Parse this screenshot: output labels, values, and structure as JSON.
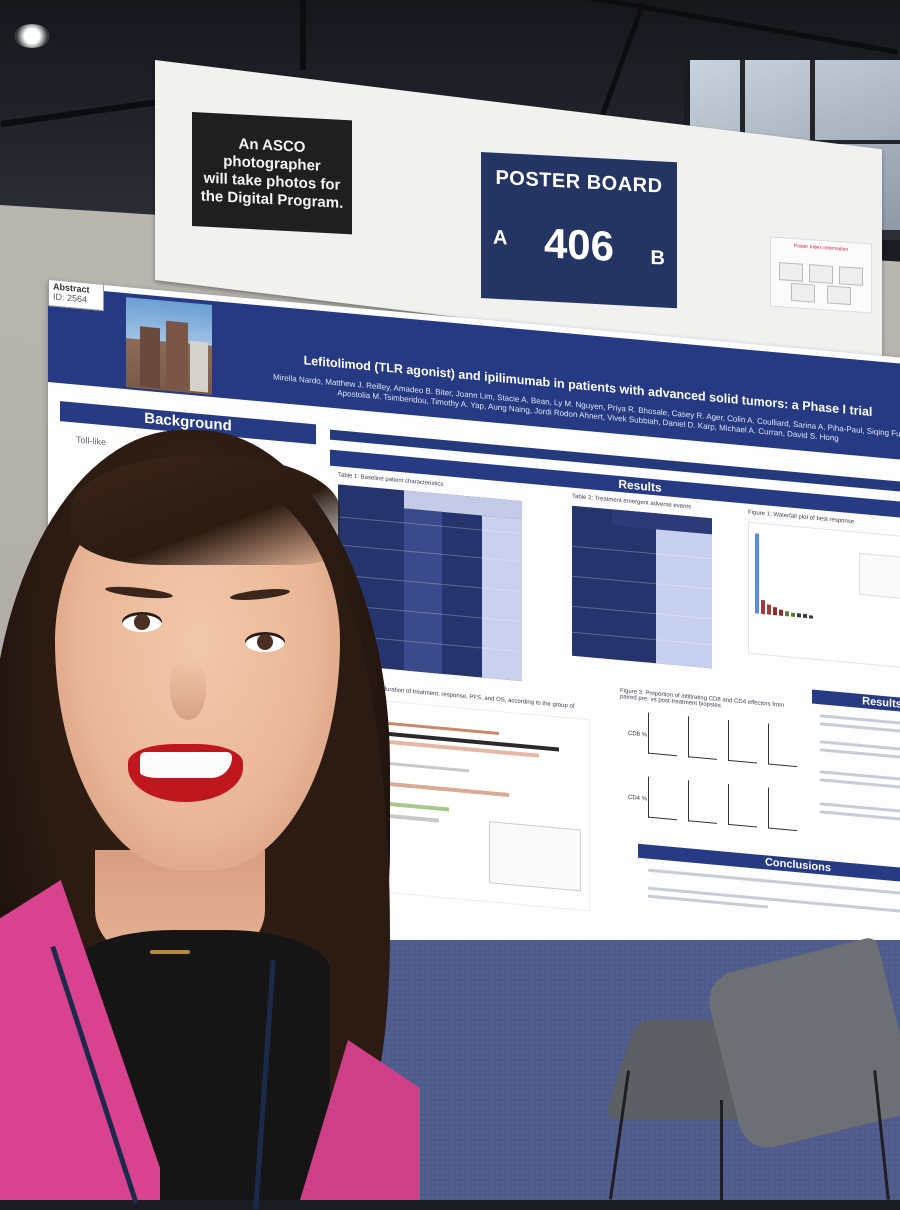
{
  "sign": {
    "photo_notice": "An ASCO photographer\nwill take photos for\nthe Digital Program.",
    "board_label": "POSTER BOARD",
    "board_number": "406",
    "side_a": "A",
    "side_b": "B",
    "qr_card_title": "Poster Index Information"
  },
  "poster": {
    "abstract_tag_label": "Abstract",
    "abstract_tag_id": "ID: 2564",
    "title": "Lefitolimod (TLR agonist) and ipilimumab in patients with advanced solid tumors: a Phase I trial",
    "authors_line1": "Mirella Nardo, Matthew J. Reilley, Amadeo B. Biter, Joann Lim, Stacie A. Bean, Ly M. Nguyen, Priya R. Bhosale, Casey R. Ager, Colin A. Coulliard, Sarina A. Piha-Paul, Siqing Fu,",
    "authors_line2": "Apostolia M. Tsimberidou, Timothy A. Yap, Aung Naing, Jordi Rodon Ahnert, Vivek Subbiah, Daniel D. Karp, Michael A. Curran, David S. Hong",
    "background_heading": "Background",
    "background_text": "Toll-like",
    "results_heading": "Results",
    "results_heading_2": "Results",
    "conclusions_heading": "Conclusions",
    "table1_title": "Table 1: Baseline patient characteristics",
    "table2_title": "Table 2: Treatment emergent adverse events",
    "figure3_title": "Figure 3: Proportion of infiltrating CD8 and CD4 effectors from paired pre- vs post-treatment biopsies",
    "figure1_title": "Figure 1: Waterfall plot of best response",
    "swimmer_title": "Swimmer plot of duration of treatment, response, PFS, and OS, according to the group of",
    "cd8_label": "CD8 %",
    "cd4_label": "CD4 %"
  }
}
